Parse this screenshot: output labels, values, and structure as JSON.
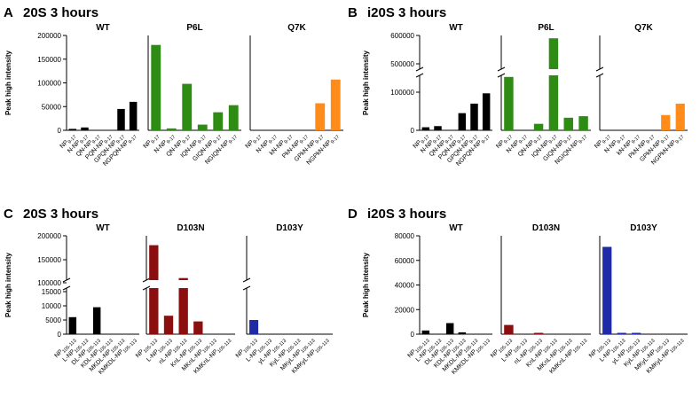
{
  "colors": {
    "WT": "#000000",
    "P6L": "#2e8b14",
    "Q7K": "#ff8c1a",
    "D103N": "#8b0f0f",
    "D103Y": "#1f2aa6"
  },
  "ylabel": "Peak high intensity",
  "chart_data": [
    {
      "type": "bar",
      "panel_letter": "A",
      "title": "20S 3 hours",
      "ylabel": "Peak high intensity",
      "ylim": [
        0,
        200000
      ],
      "yticks": [
        "0",
        "50000",
        "100000",
        "150000",
        "200000"
      ],
      "groups": [
        {
          "name": "WT",
          "color": "#000000",
          "categories": [
            "NP 9-17",
            "N-NP 9-17",
            "QN-NP 9-17",
            "PQN-NP 9-17",
            "GPQN-NP 9-17",
            "NGPQN-NP 9-17"
          ],
          "values": [
            3000,
            6000,
            0,
            0,
            45000,
            60000
          ]
        },
        {
          "name": "P6L",
          "color": "#2e8b14",
          "categories": [
            "NP 9-17",
            "N-NP 9-17",
            "QN-NP 9-17",
            "IQN-NP 9-17",
            "GIQN-NP 9-17",
            "NGIQN-NP 9-17"
          ],
          "values": [
            180000,
            4000,
            98000,
            12000,
            38000,
            53000
          ]
        },
        {
          "name": "Q7K",
          "color": "#ff8c1a",
          "categories": [
            "NP 9-17",
            "N-NP 9-17",
            "kN-NP 9-17",
            "PkN-NP 9-17",
            "GPkN-NP 9-17",
            "NGPkN-NP 9-17"
          ],
          "values": [
            0,
            0,
            0,
            0,
            57000,
            107000
          ]
        }
      ]
    },
    {
      "type": "bar",
      "panel_letter": "B",
      "title": "i20S 3 hours",
      "ylabel": "Peak high intensity",
      "axis_break": [
        150000,
        450000
      ],
      "ylim": [
        0,
        600000
      ],
      "yticks": [
        "0",
        "100000",
        "500000",
        "600000"
      ],
      "groups": [
        {
          "name": "WT",
          "color": "#000000",
          "categories": [
            "NP 9-17",
            "N-NP 9-17",
            "QN-NP 9-17",
            "PQN-NP 9-17",
            "GPQN-NP 9-17",
            "NGPQN-NP 9-17"
          ],
          "values": [
            8000,
            11000,
            0,
            45000,
            70000,
            97000
          ]
        },
        {
          "name": "P6L",
          "color": "#2e8b14",
          "categories": [
            "NP 9-17",
            "N-NP 9-17",
            "QN-NP 9-17",
            "IQN-NP 9-17",
            "GIQN-NP 9-17",
            "NGIQN-NP 9-17"
          ],
          "values": [
            140000,
            0,
            17000,
            590000,
            33000,
            37000
          ]
        },
        {
          "name": "Q7K",
          "color": "#ff8c1a",
          "categories": [
            "NP 9-17",
            "N-NP 9-17",
            "kN-NP 9-17",
            "PkN-NP 9-17",
            "GPkN-NP 9-17",
            "NGPkN-NP 9-17"
          ],
          "values": [
            0,
            0,
            0,
            0,
            40000,
            70000
          ]
        }
      ]
    },
    {
      "type": "bar",
      "panel_letter": "C",
      "title": "20S 3 hours",
      "ylabel": "Peak high intensity",
      "axis_break": [
        15000,
        100000
      ],
      "ylim": [
        0,
        200000
      ],
      "yticks": [
        "0",
        "5000",
        "10000",
        "15000",
        "100000",
        "150000",
        "200000"
      ],
      "groups": [
        {
          "name": "WT",
          "color": "#000000",
          "categories": [
            "NP 105-113",
            "L-NP 105-113",
            "DL-NP 105-113",
            "KDL-NP 105-113",
            "MKDL-NP 105-113",
            "KMKDL-NP 105-113"
          ],
          "values": [
            6000,
            0,
            9500,
            0,
            0,
            0
          ]
        },
        {
          "name": "D103N",
          "color": "#8b0f0f",
          "categories": [
            "NP 105-113",
            "L-NP 105-113",
            "nL-NP 105-113",
            "KnL-NP 105-113",
            "MKnL-NP 105-113",
            "KMKnL-NP 105-113"
          ],
          "values": [
            180000,
            6500,
            110000,
            4500,
            0,
            0
          ]
        },
        {
          "name": "D103Y",
          "color": "#1f2aa6",
          "categories": [
            "NP 105-113",
            "L-NP 105-113",
            "yL-NP 105-113",
            "KyL-NP 105-113",
            "MKyL-NP 105-113",
            "KMKyL-NP 105-113"
          ],
          "values": [
            5000,
            0,
            0,
            0,
            0,
            0
          ]
        }
      ]
    },
    {
      "type": "bar",
      "panel_letter": "D",
      "title": "i20S 3 hours",
      "ylabel": "Peak high intensity",
      "ylim": [
        0,
        80000
      ],
      "yticks": [
        "0",
        "20000",
        "40000",
        "60000",
        "80000"
      ],
      "groups": [
        {
          "name": "WT",
          "color": "#000000",
          "categories": [
            "NP 105-113",
            "L-NP 105-113",
            "DL-NP 105-113",
            "KDL-NP 105-113",
            "MKDL-NP 105-113",
            "KMKDL-NP 105-113"
          ],
          "values": [
            3000,
            0,
            9000,
            1500,
            0,
            0
          ]
        },
        {
          "name": "D103N",
          "color": "#8b0f0f",
          "categories": [
            "NP 105-113",
            "L-NP 105-113",
            "nL-NP 105-113",
            "KnL-NP 105-113",
            "MKnL-NP 105-113",
            "KMKnL-NP 105-113"
          ],
          "values": [
            7500,
            0,
            1000,
            0,
            0,
            0
          ]
        },
        {
          "name": "D103Y",
          "color": "#1f2aa6",
          "categories": [
            "NP 105-113",
            "L-NP 105-113",
            "yL-NP 105-113",
            "KyL-NP 105-113",
            "MKyL-NP 105-113",
            "KMKyL-NP 105-113"
          ],
          "values": [
            71000,
            1000,
            1000,
            0,
            0,
            0
          ]
        }
      ]
    }
  ]
}
